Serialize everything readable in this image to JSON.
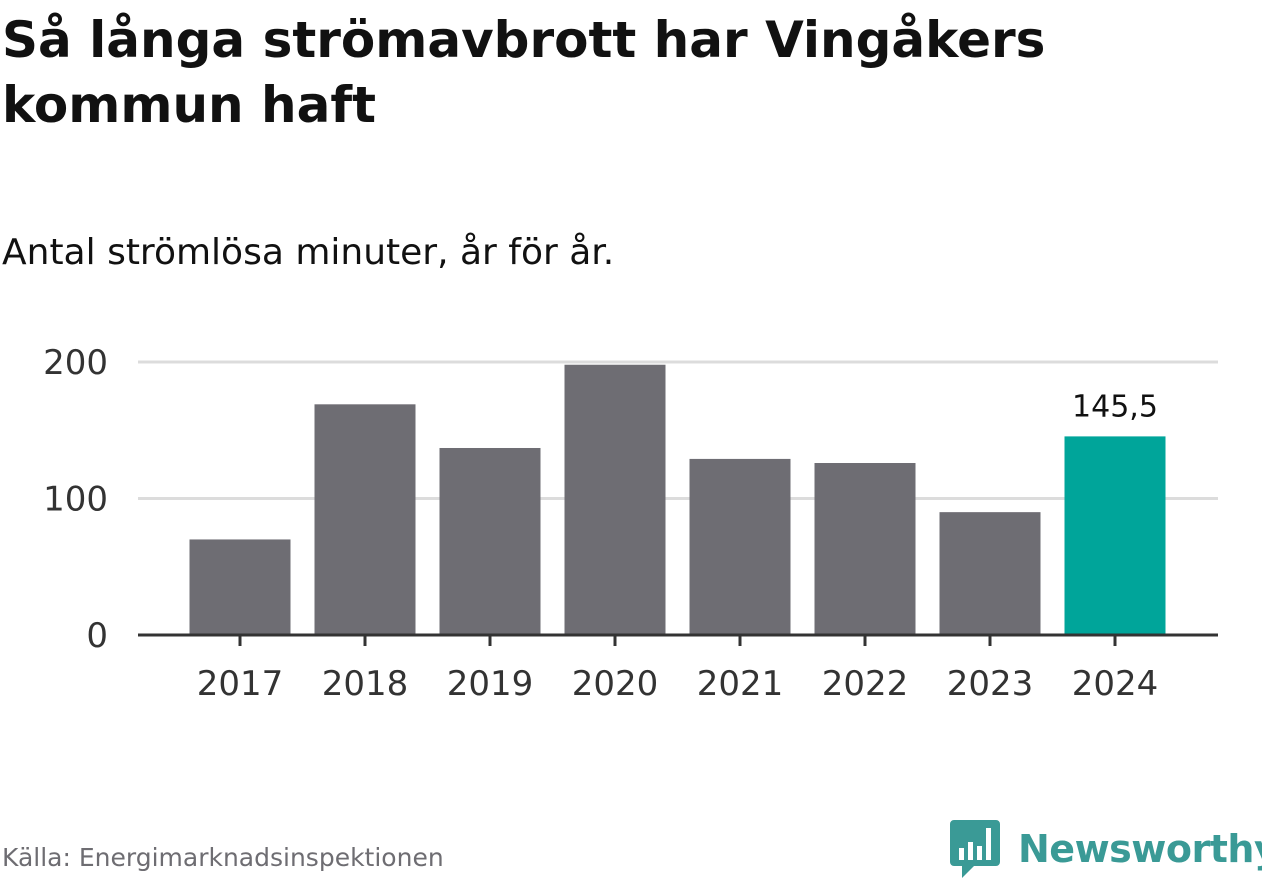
{
  "title": "Så långa strömavbrott har Vingåkers kommun haft",
  "subtitle": "Antal strömlösa minuter, år för år.",
  "source": "Källa: Energimarknadsinspektionen",
  "brand": {
    "name": "Newsworthy",
    "icon": "newsworthy-logo-icon",
    "color": "#3a9a96"
  },
  "colors": {
    "bar": "#6e6d73",
    "highlight": "#00a59a",
    "grid": "#dcdcdc",
    "axis": "#333333"
  },
  "chart_data": {
    "type": "bar",
    "categories": [
      "2017",
      "2018",
      "2019",
      "2020",
      "2021",
      "2022",
      "2023",
      "2024"
    ],
    "values": [
      70,
      169,
      137,
      198,
      129,
      126,
      90,
      145.5
    ],
    "highlight_index": 7,
    "data_labels": [
      {
        "index": 7,
        "text": "145,5"
      }
    ],
    "y_ticks": [
      "0",
      "100",
      "200"
    ],
    "y_tick_values": [
      0,
      100,
      200
    ],
    "ylim": [
      0,
      200
    ],
    "grid": true
  }
}
